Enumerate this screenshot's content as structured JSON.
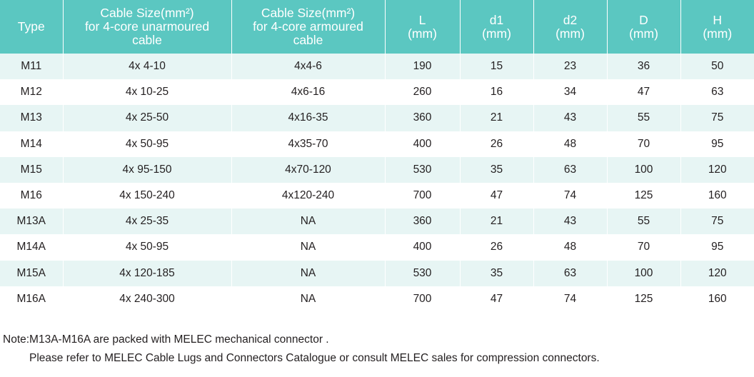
{
  "table": {
    "headers": [
      {
        "lines": [
          "Type"
        ]
      },
      {
        "lines": [
          "Cable Size(mm²)",
          "for 4-core unarmoured",
          "cable"
        ]
      },
      {
        "lines": [
          "Cable Size(mm²)",
          "for 4-core armoured",
          "cable"
        ]
      },
      {
        "lines": [
          "L",
          "(mm)"
        ]
      },
      {
        "lines": [
          "d1",
          "(mm)"
        ]
      },
      {
        "lines": [
          "d2",
          "(mm)"
        ]
      },
      {
        "lines": [
          "D",
          "(mm)"
        ]
      },
      {
        "lines": [
          "H",
          "(mm)"
        ]
      }
    ],
    "rows": [
      [
        "M11",
        "4x 4-10",
        "4x4-6",
        "190",
        "15",
        "23",
        "36",
        "50"
      ],
      [
        "M12",
        "4x 10-25",
        "4x6-16",
        "260",
        "16",
        "34",
        "47",
        "63"
      ],
      [
        "M13",
        "4x 25-50",
        "4x16-35",
        "360",
        "21",
        "43",
        "55",
        "75"
      ],
      [
        "M14",
        "4x 50-95",
        "4x35-70",
        "400",
        "26",
        "48",
        "70",
        "95"
      ],
      [
        "M15",
        "4x 95-150",
        "4x70-120",
        "530",
        "35",
        "63",
        "100",
        "120"
      ],
      [
        "M16",
        "4x 150-240",
        "4x120-240",
        "700",
        "47",
        "74",
        "125",
        "160"
      ],
      [
        "M13A",
        "4x 25-35",
        "NA",
        "360",
        "21",
        "43",
        "55",
        "75"
      ],
      [
        "M14A",
        "4x 50-95",
        "NA",
        "400",
        "26",
        "48",
        "70",
        "95"
      ],
      [
        "M15A",
        "4x 120-185",
        "NA",
        "530",
        "35",
        "63",
        "100",
        "120"
      ],
      [
        "M16A",
        "4x 240-300",
        "NA",
        "700",
        "47",
        "74",
        "125",
        "160"
      ]
    ]
  },
  "note": {
    "line1": "Note:M13A-M16A are packed with MELEC mechanical connector .",
    "line2": "Please refer to MELEC Cable Lugs and Connectors Catalogue or consult MELEC sales for compression connectors."
  },
  "colors": {
    "header_bg": "#5bc7c1",
    "header_text": "#ffffff",
    "stripe_bg": "#e7f5f4",
    "text": "#231f20"
  }
}
